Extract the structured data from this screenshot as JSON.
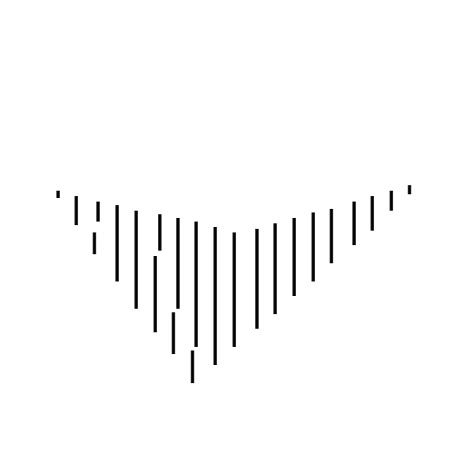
{
  "image": {
    "background_color": "#ffffff",
    "stroke_color": "#000000",
    "pattern": "v-shaped-vertical-line-hatching"
  }
}
